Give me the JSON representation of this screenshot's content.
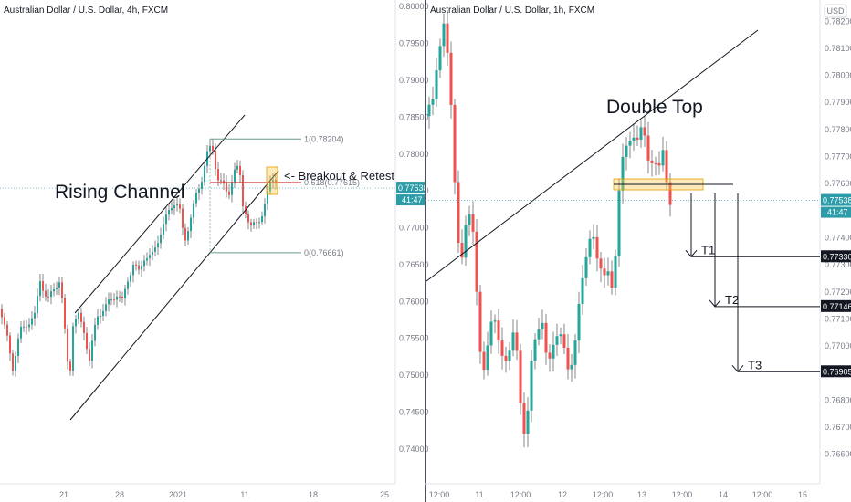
{
  "chart_data": [
    {
      "type": "candlestick",
      "title": "Australian Dollar / U.S. Dollar, 4h, FXCM",
      "x_ticks": [
        "21",
        "28",
        "2021",
        "11",
        "18",
        "25"
      ],
      "y_ticks": [
        "0.79500",
        "0.79000",
        "0.78500",
        "0.78000",
        "0.77500",
        "0.77000",
        "0.76500",
        "0.76000",
        "0.75500",
        "0.75000",
        "0.74500",
        "0.74000"
      ],
      "y_top_label": "0.80000",
      "ylim": [
        0.7375,
        0.8004
      ],
      "current_price": "0.77538",
      "countdown": "41:47",
      "fib_levels": [
        {
          "label": "1(0.78204)",
          "value": 0.78204
        },
        {
          "label": "0.618(0.77615)",
          "value": 0.77615
        },
        {
          "label": "0(0.76661)",
          "value": 0.76661
        }
      ],
      "annotations": {
        "channel": "Rising Channel",
        "retest": "<- Breakout & Retest"
      },
      "colors": {
        "up": "#26a69a",
        "down": "#ef5350",
        "fib": "#6b9b83",
        "fib_618": "#d0373a",
        "price_line": "#2b9ca8",
        "retest_box": "#f9c74f"
      }
    },
    {
      "type": "candlestick",
      "title": "Australian Dollar / U.S. Dollar, 1h, FXCM",
      "currency": "USD",
      "x_ticks": [
        "12:00",
        "11",
        "12:00",
        "12",
        "12:00",
        "13",
        "12:00",
        "14",
        "12:00",
        "15"
      ],
      "y_ticks": [
        "0.78100",
        "0.78000",
        "0.77900",
        "0.77800",
        "0.77700",
        "0.77600",
        "0.77400",
        "0.77300",
        "0.77200",
        "0.77100",
        "0.77000",
        "0.76900",
        "0.76800",
        "0.76700",
        "0.76600"
      ],
      "y_top_label": "0.78200",
      "ylim": [
        0.76535,
        0.78265
      ],
      "current_price": "0.77538",
      "countdown": "41:47",
      "targets": [
        {
          "label": "T1",
          "price": "0.77330",
          "value": 0.7733
        },
        {
          "label": "T2",
          "price": "0.77146",
          "value": 0.77146
        },
        {
          "label": "T3",
          "price": "0.76905",
          "value": 0.76905
        }
      ],
      "annotations": {
        "pattern": "Double Top"
      },
      "colors": {
        "up": "#26a69a",
        "down": "#ef5350",
        "price_line": "#2b9ca8",
        "neckline_box": "#f9c74f"
      }
    }
  ]
}
